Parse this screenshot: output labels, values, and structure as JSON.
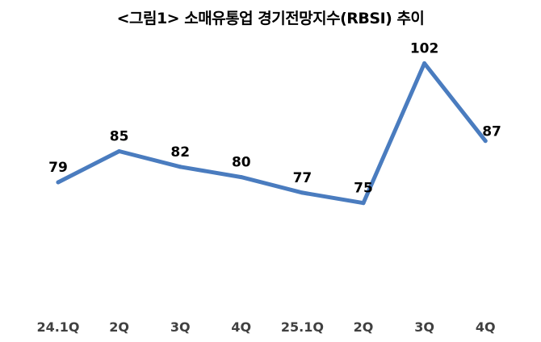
{
  "chart_data": {
    "type": "line",
    "title": "<그림1> 소매유통업 경기전망지수(RBSI) 추이",
    "categories": [
      "24.1Q",
      "2Q",
      "3Q",
      "4Q",
      "25.1Q",
      "2Q",
      "3Q",
      "4Q"
    ],
    "series": [
      {
        "values": [
          79,
          85,
          82,
          80,
          77,
          75,
          102,
          87
        ]
      }
    ],
    "data_labels": [
      "79",
      "85",
      "82",
      "80",
      "77",
      "75",
      "102",
      "87"
    ],
    "highlight_index": 7,
    "line_color": "#4A7CBF",
    "label_color": "#000000",
    "highlight_label_color": "#C00000",
    "ylim": [
      55,
      108
    ],
    "grid": false,
    "legend": "none"
  }
}
